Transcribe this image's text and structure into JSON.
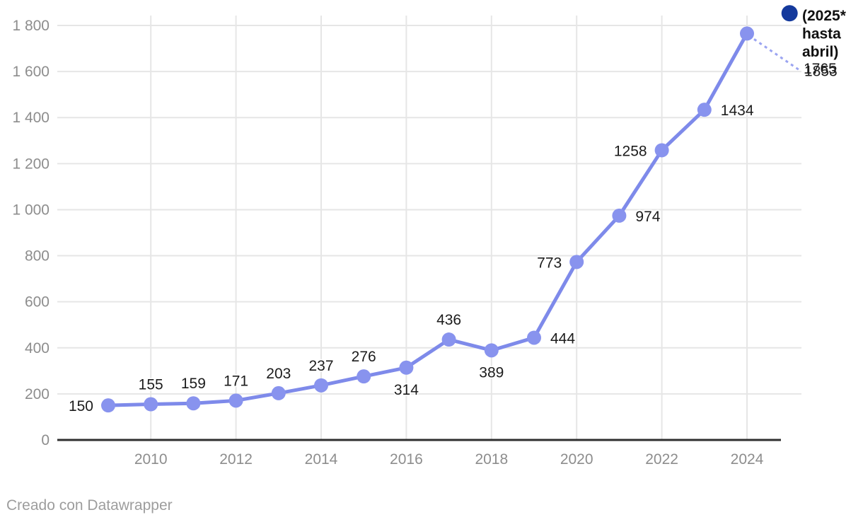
{
  "footer": {
    "text": "Creado con Datawrapper"
  },
  "style": {
    "colors": {
      "line": "#7e8aea",
      "point": "#8893ee",
      "leader": "#9ba4f1",
      "series_2025": "#14399c",
      "grid": "#e6e6e6",
      "baseline": "#2f2f2f",
      "axis_text": "#8d8d8d",
      "label_text": "#1c1c1c",
      "legend_text": "#101010"
    }
  },
  "chart_data": {
    "type": "line",
    "title": "",
    "xlabel": "",
    "ylabel": "",
    "grid": true,
    "x_axis": {
      "ticks": [
        {
          "year": 2010,
          "label": "2010"
        },
        {
          "year": 2012,
          "label": "2012"
        },
        {
          "year": 2014,
          "label": "2014"
        },
        {
          "year": 2016,
          "label": "2016"
        },
        {
          "year": 2018,
          "label": "2018"
        },
        {
          "year": 2020,
          "label": "2020"
        },
        {
          "year": 2022,
          "label": "2022"
        },
        {
          "year": 2024,
          "label": "2024"
        }
      ],
      "range": [
        2008.8,
        2025.3
      ]
    },
    "y_axis": {
      "ticks": [
        {
          "value": 0,
          "label": "0"
        },
        {
          "value": 200,
          "label": "200"
        },
        {
          "value": 400,
          "label": "400"
        },
        {
          "value": 600,
          "label": "600"
        },
        {
          "value": 800,
          "label": "800"
        },
        {
          "value": 1000,
          "label": "1 000"
        },
        {
          "value": 1200,
          "label": "1 200"
        },
        {
          "value": 1400,
          "label": "1 400"
        },
        {
          "value": 1600,
          "label": "1 600"
        },
        {
          "value": 1800,
          "label": "1 800"
        }
      ],
      "range": [
        0,
        1865
      ]
    },
    "series": [
      {
        "name": "serie-principal-2009-2024",
        "points": [
          {
            "year": 2009,
            "value": 150,
            "label": "150",
            "label_placement": "left"
          },
          {
            "year": 2010,
            "value": 155,
            "label": "155",
            "label_placement": "above"
          },
          {
            "year": 2011,
            "value": 159,
            "label": "159",
            "label_placement": "above"
          },
          {
            "year": 2012,
            "value": 171,
            "label": "171",
            "label_placement": "above"
          },
          {
            "year": 2013,
            "value": 203,
            "label": "203",
            "label_placement": "above"
          },
          {
            "year": 2014,
            "value": 237,
            "label": "237",
            "label_placement": "above"
          },
          {
            "year": 2015,
            "value": 276,
            "label": "276",
            "label_placement": "above"
          },
          {
            "year": 2016,
            "value": 314,
            "label": "314",
            "label_placement": "below"
          },
          {
            "year": 2017,
            "value": 436,
            "label": "436",
            "label_placement": "above"
          },
          {
            "year": 2018,
            "value": 389,
            "label": "389",
            "label_placement": "below"
          },
          {
            "year": 2019,
            "value": 444,
            "label": "444",
            "label_placement": "right"
          },
          {
            "year": 2020,
            "value": 773,
            "label": "773",
            "label_placement": "left"
          },
          {
            "year": 2021,
            "value": 974,
            "label": "974",
            "label_placement": "right"
          },
          {
            "year": 2022,
            "value": 1258,
            "label": "1258",
            "label_placement": "left"
          },
          {
            "year": 2023,
            "value": 1434,
            "label": "1434",
            "label_placement": "right"
          },
          {
            "year": 2024,
            "value": 1765,
            "label": "1765",
            "label_placement": "leader-right"
          }
        ]
      },
      {
        "name": "(2025* hasta abril)",
        "points": [
          {
            "year": 2025,
            "value": 1853,
            "label": "1853",
            "label_placement": "overlap-right"
          }
        ]
      }
    ],
    "legend": {
      "label": "(2025* hasta abril)",
      "lines": [
        "(2025*",
        "hasta",
        "abril)"
      ],
      "position": "top-right"
    }
  }
}
